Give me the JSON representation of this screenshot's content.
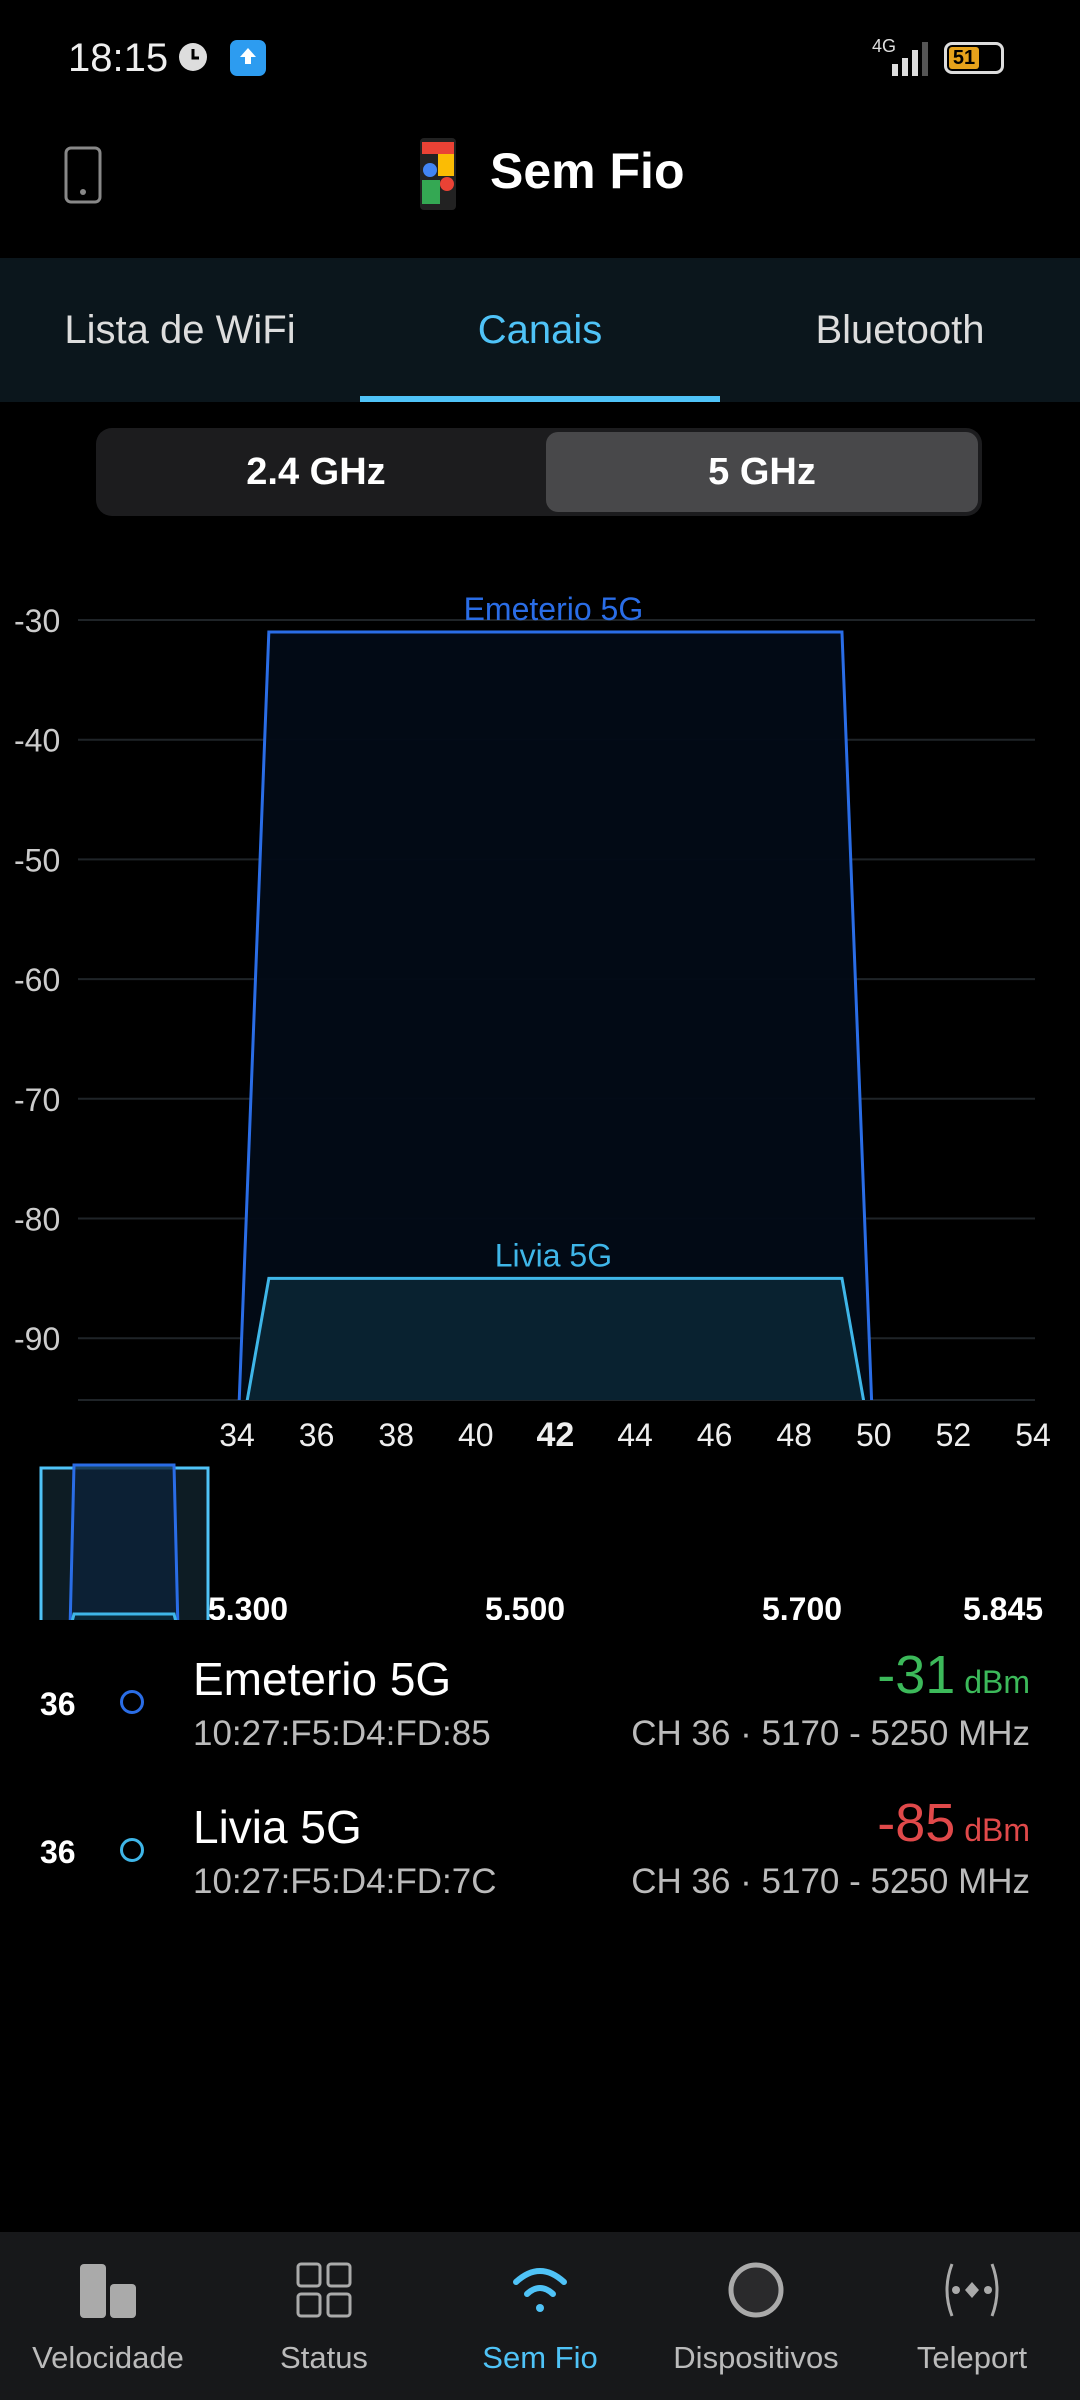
{
  "status_bar": {
    "time": "18:15",
    "network": "4G",
    "battery": "51"
  },
  "header": {
    "title": "Sem Fio"
  },
  "tabs": [
    {
      "label": "Lista de WiFi"
    },
    {
      "label": "Canais",
      "active": true
    },
    {
      "label": "Bluetooth"
    }
  ],
  "band_toggle": {
    "options": [
      "2.4 GHz",
      "5 GHz"
    ],
    "selected": "5 GHz"
  },
  "chart_data": {
    "type": "area",
    "y_ticks": [
      -30,
      -40,
      -50,
      -60,
      -70,
      -80,
      -90
    ],
    "ylim": [
      -95.5,
      -28
    ],
    "x_ticks": [
      34,
      36,
      38,
      40,
      42,
      44,
      46,
      48,
      50,
      52,
      54
    ],
    "x_highlight": 42,
    "xlim": [
      34,
      54
    ],
    "grid": true,
    "series": [
      {
        "name": "Emeterio 5G",
        "channel": 36,
        "center_channel": 42,
        "span": [
          34,
          50
        ],
        "signal": -31,
        "color": "#2a6de6"
      },
      {
        "name": "Livia 5G",
        "channel": 36,
        "center_channel": 42,
        "span": [
          34,
          50
        ],
        "signal": -85,
        "color": "#3fb6e8"
      }
    ],
    "overview_ticks": [
      "5.300",
      "5.500",
      "5.700",
      "5.845"
    ]
  },
  "networks": [
    {
      "channel": "36",
      "name": "Emeterio 5G",
      "mac": "10:27:F5:D4:FD:85",
      "signal": "-31",
      "unit": "dBm",
      "info": "CH 36 · 5170 - 5250 MHz",
      "signal_color": "#3cb95a",
      "dot_color": "#2a6de6"
    },
    {
      "channel": "36",
      "name": "Livia 5G",
      "mac": "10:27:F5:D4:FD:7C",
      "signal": "-85",
      "unit": "dBm",
      "info": "CH 36 · 5170 - 5250 MHz",
      "signal_color": "#e0494a",
      "dot_color": "#3fb6e8"
    }
  ],
  "bottom_nav": [
    {
      "label": "Velocidade"
    },
    {
      "label": "Status"
    },
    {
      "label": "Sem Fio",
      "active": true
    },
    {
      "label": "Dispositivos"
    },
    {
      "label": "Teleport"
    }
  ],
  "colors": {
    "accent": "#4fc3f7"
  }
}
